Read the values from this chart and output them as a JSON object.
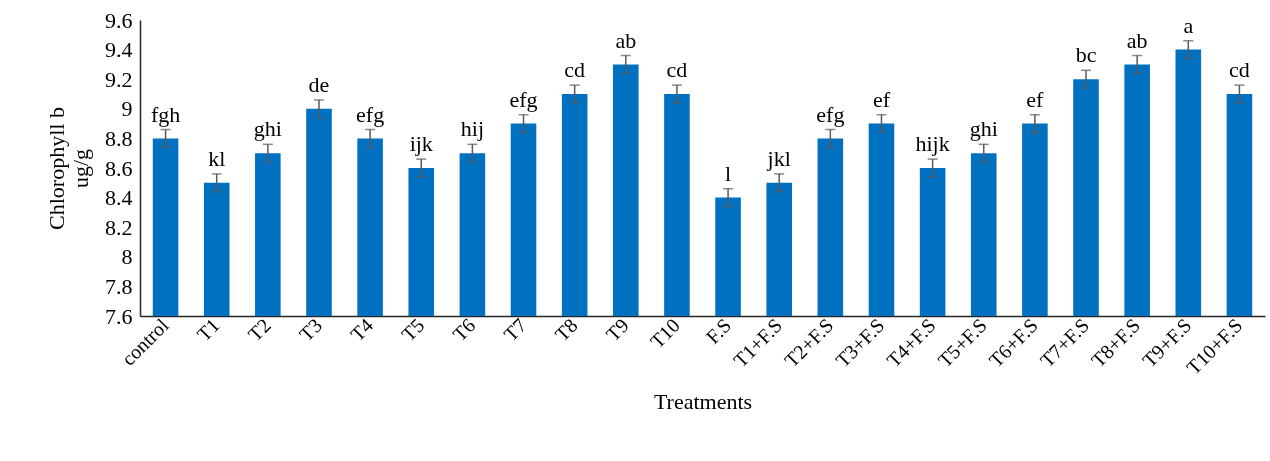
{
  "chart_data": {
    "type": "bar",
    "xlabel": "Treatments",
    "ylabel": "Chlorophyll b\nug/g",
    "categories": [
      "control",
      "T1",
      "T2",
      "T3",
      "T4",
      "T5",
      "T6",
      "T7",
      "T8",
      "T9",
      "T10",
      "F.S",
      "T1+F.S",
      "T2+F.S",
      "T3+F.S",
      "T4+F.S",
      "T5+F.S",
      "T6+F.S",
      "T7+F.S",
      "T8+F.S",
      "T9+F.S",
      "T10+F.S"
    ],
    "values": [
      8.8,
      8.5,
      8.7,
      9.0,
      8.8,
      8.6,
      8.7,
      8.9,
      9.1,
      9.3,
      9.1,
      8.4,
      8.5,
      8.8,
      8.9,
      8.6,
      8.7,
      8.9,
      9.2,
      9.3,
      9.4,
      9.1
    ],
    "errors": [
      0.06,
      0.06,
      0.06,
      0.06,
      0.06,
      0.06,
      0.06,
      0.06,
      0.06,
      0.06,
      0.06,
      0.06,
      0.06,
      0.06,
      0.06,
      0.06,
      0.06,
      0.06,
      0.06,
      0.06,
      0.06,
      0.06
    ],
    "color": "#0070c0",
    "ylim": [
      7.6,
      9.6
    ],
    "yticks": [
      7.6,
      7.8,
      8,
      8.2,
      8.4,
      8.6,
      8.8,
      9,
      9.2,
      9.4,
      9.6
    ],
    "grid": false,
    "annotations": [
      {
        "text": "fgh",
        "x": "control",
        "y": 8.86
      },
      {
        "text": "kl",
        "x": "T1",
        "y": 8.56
      },
      {
        "text": "ghi",
        "x": "T2",
        "y": 8.76
      },
      {
        "text": "de",
        "x": "T3",
        "y": 9.06
      },
      {
        "text": "efg",
        "x": "T4",
        "y": 8.86
      },
      {
        "text": "ijk",
        "x": "T5",
        "y": 8.66
      },
      {
        "text": "hij",
        "x": "T6",
        "y": 8.76
      },
      {
        "text": "efg",
        "x": "T7",
        "y": 8.96
      },
      {
        "text": "cd",
        "x": "T8",
        "y": 9.16
      },
      {
        "text": "ab",
        "x": "T9",
        "y": 9.36
      },
      {
        "text": "cd",
        "x": "T10",
        "y": 9.16
      },
      {
        "text": "l",
        "x": "F.S",
        "y": 8.46
      },
      {
        "text": "jkl",
        "x": "T1+F.S",
        "y": 8.56
      },
      {
        "text": "efg",
        "x": "T2+F.S",
        "y": 8.86
      },
      {
        "text": "ef",
        "x": "T3+F.S",
        "y": 8.96
      },
      {
        "text": "hijk",
        "x": "T4+F.S",
        "y": 8.66
      },
      {
        "text": "ghi",
        "x": "T5+F.S",
        "y": 8.76
      },
      {
        "text": "ef",
        "x": "T6+F.S",
        "y": 8.96
      },
      {
        "text": "bc",
        "x": "T7+F.S",
        "y": 9.26
      },
      {
        "text": "ab",
        "x": "T8+F.S",
        "y": 9.36
      },
      {
        "text": "a",
        "x": "T9+F.S",
        "y": 9.46
      },
      {
        "text": "cd",
        "x": "T10+F.S",
        "y": 9.16
      }
    ]
  }
}
